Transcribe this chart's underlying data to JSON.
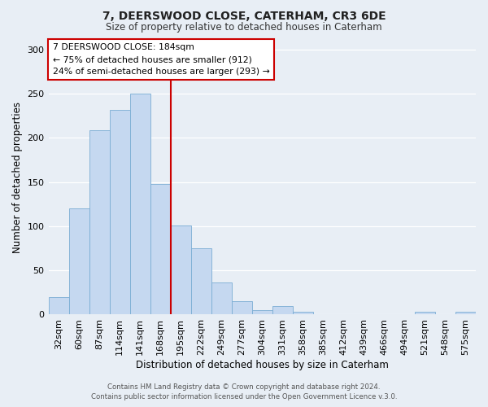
{
  "title": "7, DEERSWOOD CLOSE, CATERHAM, CR3 6DE",
  "subtitle": "Size of property relative to detached houses in Caterham",
  "xlabel": "Distribution of detached houses by size in Caterham",
  "ylabel": "Number of detached properties",
  "bar_color": "#c5d8f0",
  "bar_edge_color": "#7aadd4",
  "background_color": "#e8eef5",
  "grid_color": "#ffffff",
  "categories": [
    "32sqm",
    "60sqm",
    "87sqm",
    "114sqm",
    "141sqm",
    "168sqm",
    "195sqm",
    "222sqm",
    "249sqm",
    "277sqm",
    "304sqm",
    "331sqm",
    "358sqm",
    "385sqm",
    "412sqm",
    "439sqm",
    "466sqm",
    "494sqm",
    "521sqm",
    "548sqm",
    "575sqm"
  ],
  "values": [
    20,
    120,
    209,
    232,
    250,
    148,
    101,
    75,
    36,
    15,
    5,
    10,
    3,
    0,
    0,
    0,
    0,
    0,
    3,
    0,
    3
  ],
  "ylim": [
    0,
    310
  ],
  "yticks": [
    0,
    50,
    100,
    150,
    200,
    250,
    300
  ],
  "vline_color": "#cc0000",
  "vline_x_index": 5.5,
  "annotation_line1": "7 DEERSWOOD CLOSE: 184sqm",
  "annotation_line2": "← 75% of detached houses are smaller (912)",
  "annotation_line3": "24% of semi-detached houses are larger (293) →",
  "annotation_box_color": "#ffffff",
  "annotation_box_edge": "#cc0000",
  "footer_line1": "Contains HM Land Registry data © Crown copyright and database right 2024.",
  "footer_line2": "Contains public sector information licensed under the Open Government Licence v.3.0."
}
